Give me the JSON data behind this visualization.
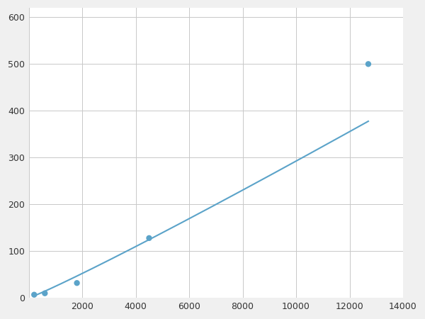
{
  "x_points": [
    200,
    600,
    1800,
    4500,
    12700
  ],
  "y_points": [
    7,
    10,
    32,
    128,
    500
  ],
  "line_color": "#5ba3c9",
  "marker_color": "#5ba3c9",
  "marker_size": 6,
  "line_width": 1.5,
  "xlim": [
    0,
    14000
  ],
  "ylim": [
    0,
    620
  ],
  "xticks": [
    0,
    2000,
    4000,
    6000,
    8000,
    10000,
    12000,
    14000
  ],
  "yticks": [
    0,
    100,
    200,
    300,
    400,
    500,
    600
  ],
  "grid_color": "#c8c8c8",
  "background_color": "#ffffff",
  "figure_bg": "#f0f0f0"
}
